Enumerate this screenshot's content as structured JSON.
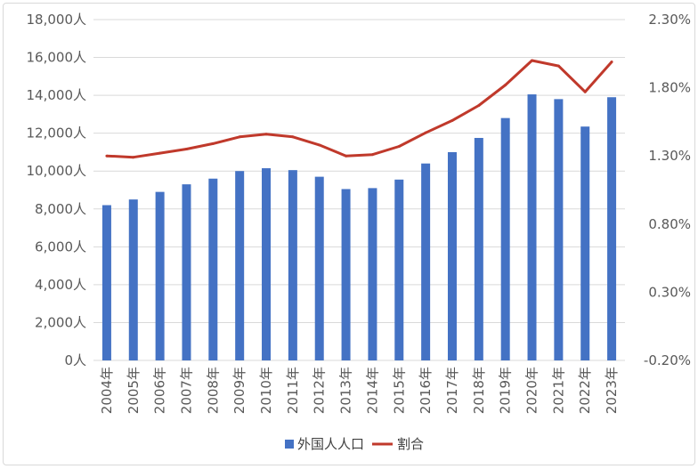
{
  "chart_data": {
    "type": "bar+line",
    "categories": [
      "2004年",
      "2005年",
      "2006年",
      "2007年",
      "2008年",
      "2009年",
      "2010年",
      "2011年",
      "2012年",
      "2013年",
      "2014年",
      "2015年",
      "2016年",
      "2017年",
      "2018年",
      "2019年",
      "2020年",
      "2021年",
      "2022年",
      "2023年"
    ],
    "series": [
      {
        "name": "外国人人口",
        "type": "bar",
        "axis": "left",
        "color": "#4472c4",
        "values": [
          8200,
          8500,
          8900,
          9300,
          9600,
          10000,
          10150,
          10050,
          9700,
          9050,
          9100,
          9550,
          10400,
          11000,
          11750,
          12800,
          14050,
          13800,
          12350,
          13900
        ]
      },
      {
        "name": "割合",
        "type": "line",
        "axis": "right",
        "color": "#c0392b",
        "values": [
          1.3,
          1.29,
          1.32,
          1.35,
          1.39,
          1.44,
          1.46,
          1.44,
          1.38,
          1.3,
          1.31,
          1.37,
          1.47,
          1.56,
          1.67,
          1.82,
          2.0,
          1.96,
          1.77,
          1.99
        ]
      }
    ],
    "y_left": {
      "ylim": [
        0,
        18000
      ],
      "ticks": [
        "18,000人",
        "16,000人",
        "14,000人",
        "12,000人",
        "10,000人",
        "8,000人",
        "6,000人",
        "4,000人",
        "2,000人",
        "0人"
      ]
    },
    "y_right": {
      "ylim": [
        -0.2,
        2.3
      ],
      "ticks": [
        "2.30%",
        "1.80%",
        "1.30%",
        "0.80%",
        "0.30%",
        "-0.20%"
      ]
    },
    "grid": true,
    "legend": "bottom"
  }
}
